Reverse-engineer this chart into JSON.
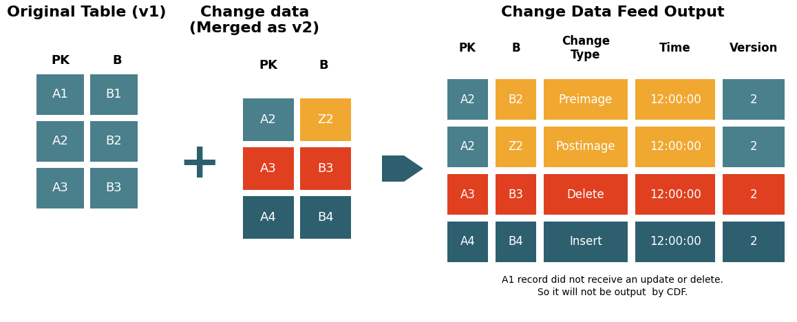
{
  "bg_color": "#ffffff",
  "teal": "#4a7f8c",
  "orange": "#f0a830",
  "red": "#e04020",
  "dark_teal": "#2d5f6e",
  "title1": "Original Table (v1)",
  "title2": "Change data\n(Merged as v2)",
  "title3": "Change Data Feed Output",
  "orig_rows": [
    [
      "A1",
      "B1"
    ],
    [
      "A2",
      "B2"
    ],
    [
      "A3",
      "B3"
    ]
  ],
  "change_rows": [
    {
      "pk": "A2",
      "b": "Z2",
      "pk_color": "teal",
      "b_color": "orange"
    },
    {
      "pk": "A3",
      "b": "B3",
      "pk_color": "red",
      "b_color": "red"
    },
    {
      "pk": "A4",
      "b": "B4",
      "pk_color": "dark_teal",
      "b_color": "dark_teal"
    }
  ],
  "output_rows": [
    {
      "pk": "A2",
      "b": "B2",
      "ct": "Preimage",
      "time": "12:00:00",
      "ver": "2",
      "row_color": "orange",
      "pk_color": "teal",
      "ver_color": "teal"
    },
    {
      "pk": "A2",
      "b": "Z2",
      "ct": "Postimage",
      "time": "12:00:00",
      "ver": "2",
      "row_color": "orange",
      "pk_color": "teal",
      "ver_color": "teal"
    },
    {
      "pk": "A3",
      "b": "B3",
      "ct": "Delete",
      "time": "12:00:00",
      "ver": "2",
      "row_color": "red",
      "pk_color": "red",
      "ver_color": "red"
    },
    {
      "pk": "A4",
      "b": "B4",
      "ct": "Insert",
      "time": "12:00:00",
      "ver": "2",
      "row_color": "dark_teal",
      "pk_color": "dark_teal",
      "ver_color": "dark_teal"
    }
  ],
  "footnote_line1": "A1 record did not receive an update or delete.",
  "footnote_line2": "So it will not be output  by CDF."
}
